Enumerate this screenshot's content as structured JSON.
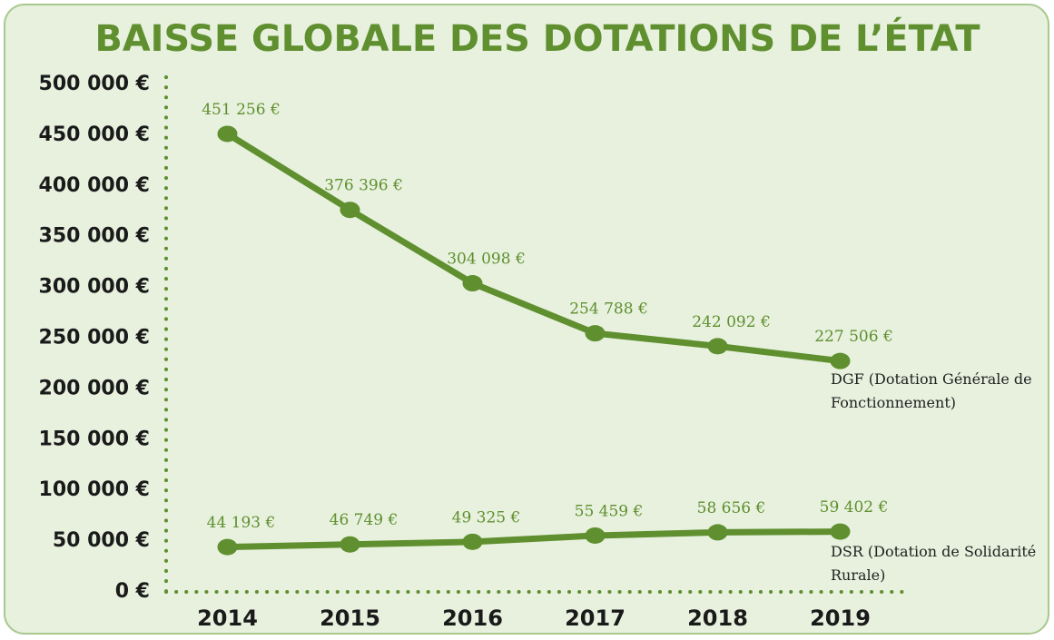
{
  "chart_data": {
    "type": "line",
    "title": "BAISSE GLOBALE DES DOTATIONS DE L’ÉTAT",
    "categories": [
      "2014",
      "2015",
      "2016",
      "2017",
      "2018",
      "2019"
    ],
    "series": [
      {
        "name": "DGF (Dotation Générale de Fonctionnement)",
        "color": "#5f8f2e",
        "values": [
          451256,
          376396,
          304098,
          254788,
          242092,
          227506
        ],
        "value_labels": [
          "451 256 €",
          "376 396 €",
          "304 098 €",
          "254 788 €",
          "242 092 €",
          "227 506 €"
        ]
      },
      {
        "name": "DSR (Dotation de Solidarité Rurale)",
        "color": "#5f8f2e",
        "values": [
          44193,
          46749,
          49325,
          55459,
          58656,
          59402
        ],
        "value_labels": [
          "44 193 €",
          "46 749 €",
          "49 325 €",
          "55 459 €",
          "58 656 €",
          "59 402 €"
        ]
      }
    ],
    "ylim": [
      0,
      500000
    ],
    "yticks": [
      {
        "value": 0,
        "label": "0 €"
      },
      {
        "value": 50000,
        "label": "50 000 €"
      },
      {
        "value": 100000,
        "label": "100 000 €"
      },
      {
        "value": 150000,
        "label": "150 000 €"
      },
      {
        "value": 200000,
        "label": "200 000 €"
      },
      {
        "value": 250000,
        "label": "250 000 €"
      },
      {
        "value": 300000,
        "label": "300 000 €"
      },
      {
        "value": 350000,
        "label": "350 000 €"
      },
      {
        "value": 400000,
        "label": "400 000 €"
      },
      {
        "value": 450000,
        "label": "450 000 €"
      },
      {
        "value": 500000,
        "label": "500 000 €"
      }
    ]
  }
}
